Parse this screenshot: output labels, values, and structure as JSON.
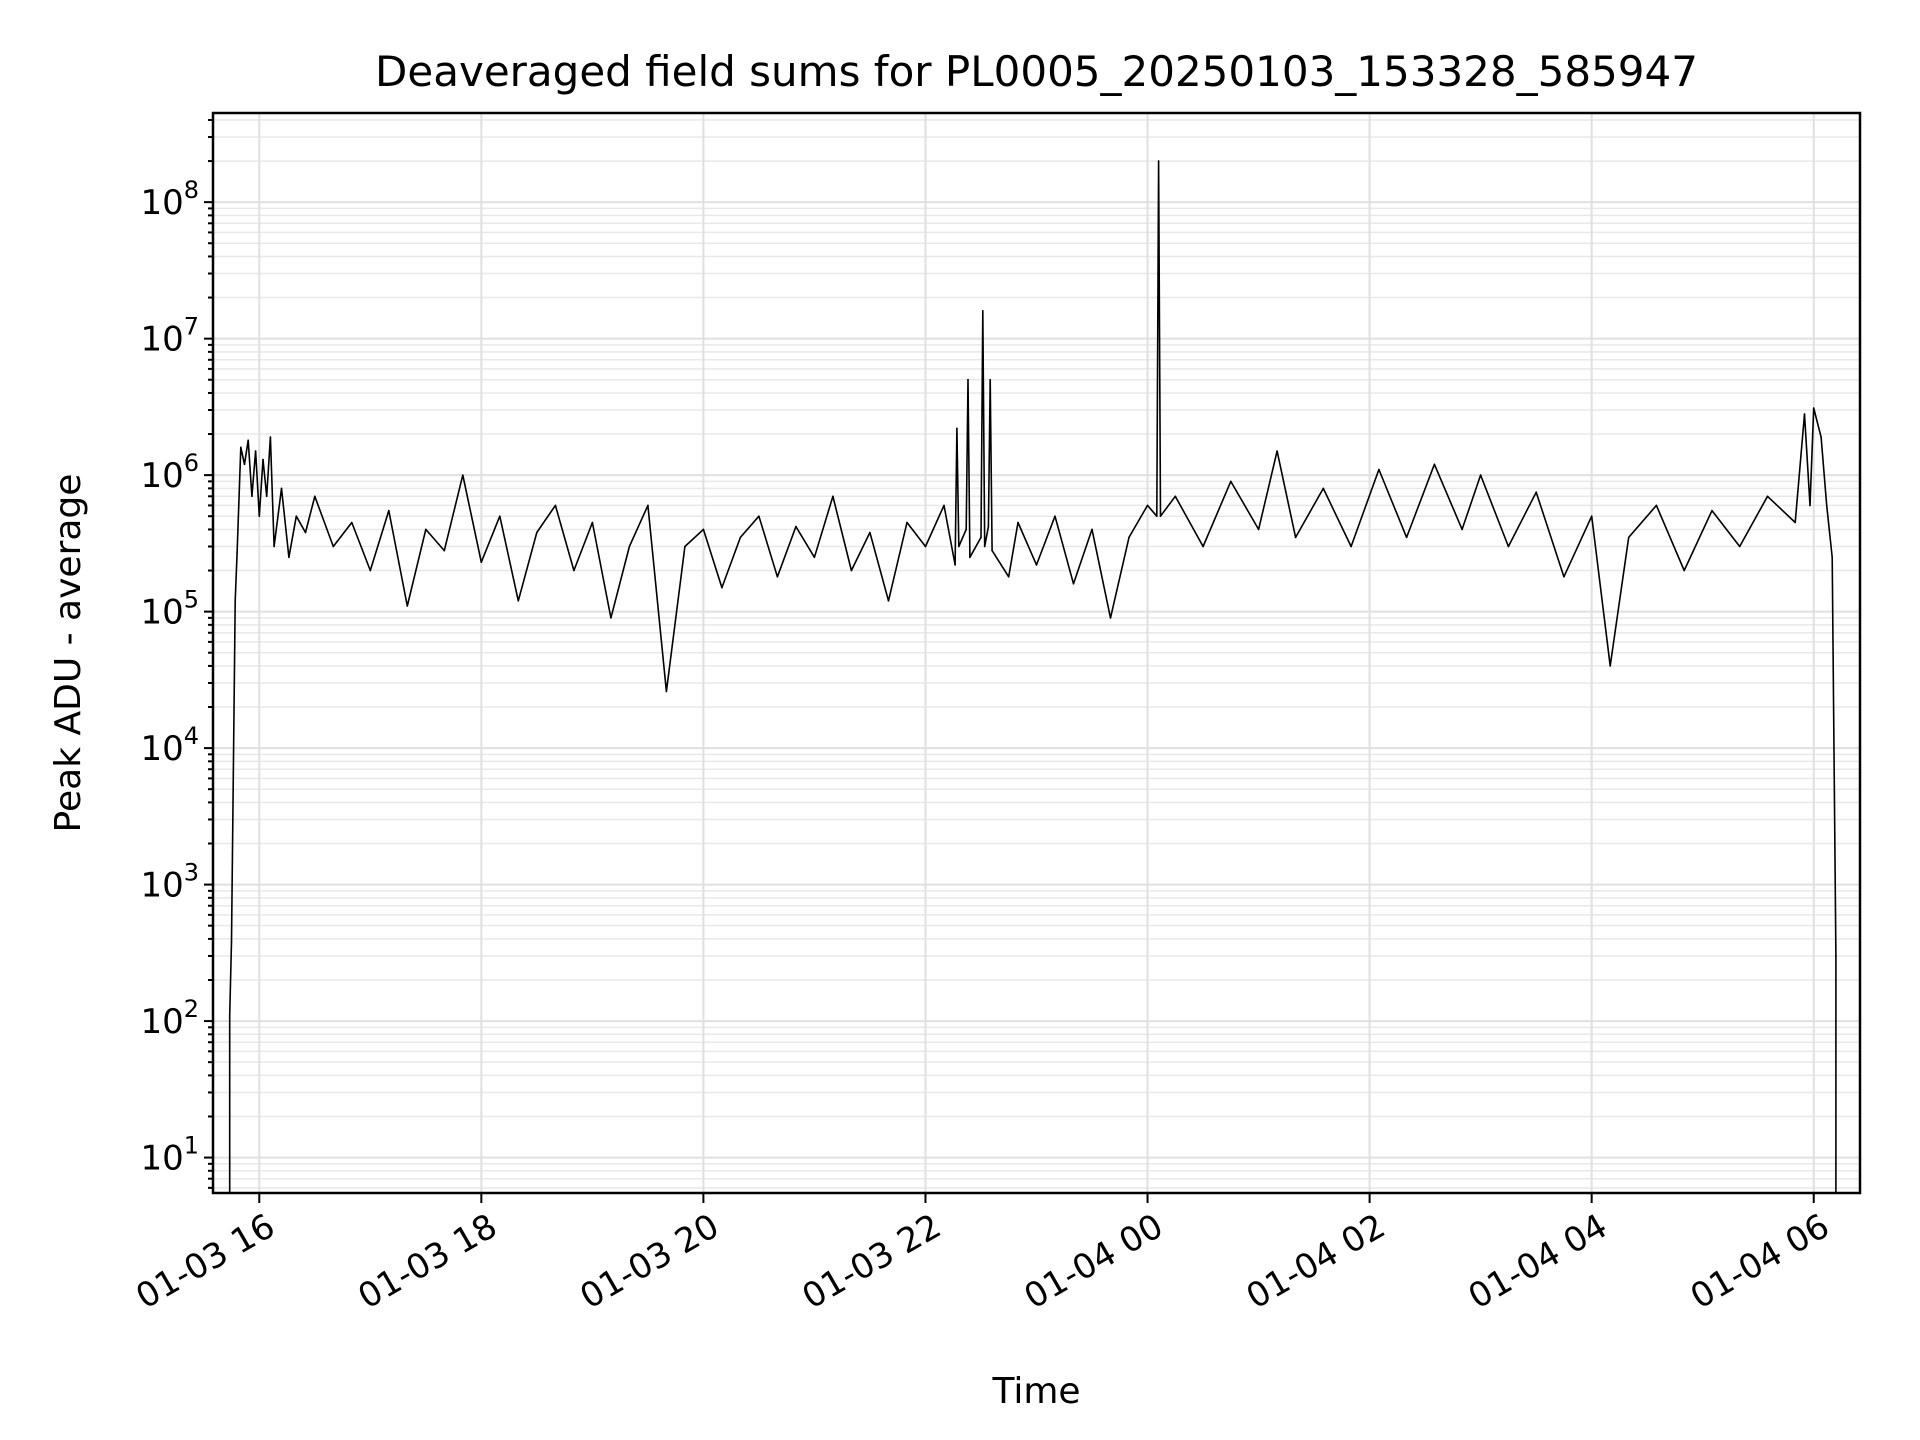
{
  "chart_data": {
    "type": "line",
    "title": "Deaveraged field sums for PL0005_20250103_153328_585947",
    "xlabel": "Time",
    "ylabel": "Peak ADU - average",
    "yscale": "log",
    "ylim": [
      5.5,
      450000000
    ],
    "xlim": [
      "2025-01-03 15:35",
      "2025-01-04 06:25"
    ],
    "grid": true,
    "x_ticks": [
      {
        "value": "2025-01-03 16:00",
        "label": "01-03 16"
      },
      {
        "value": "2025-01-03 18:00",
        "label": "01-03 18"
      },
      {
        "value": "2025-01-03 20:00",
        "label": "01-03 20"
      },
      {
        "value": "2025-01-03 22:00",
        "label": "01-03 22"
      },
      {
        "value": "2025-01-04 00:00",
        "label": "01-04 00"
      },
      {
        "value": "2025-01-04 02:00",
        "label": "01-04 02"
      },
      {
        "value": "2025-01-04 04:00",
        "label": "01-04 04"
      },
      {
        "value": "2025-01-04 06:00",
        "label": "01-04 06"
      }
    ],
    "y_ticks": [
      {
        "value": 10,
        "base": "10",
        "exp": "1"
      },
      {
        "value": 100,
        "base": "10",
        "exp": "2"
      },
      {
        "value": 1000,
        "base": "10",
        "exp": "3"
      },
      {
        "value": 10000,
        "base": "10",
        "exp": "4"
      },
      {
        "value": 100000,
        "base": "10",
        "exp": "5"
      },
      {
        "value": 1000000,
        "base": "10",
        "exp": "6"
      },
      {
        "value": 10000000,
        "base": "10",
        "exp": "7"
      },
      {
        "value": 100000000,
        "base": "10",
        "exp": "8"
      }
    ],
    "line_color": "#000000",
    "series": [
      {
        "points": [
          [
            "2025-01-03 15:44",
            110
          ],
          [
            "2025-01-03 15:45",
            380
          ],
          [
            "2025-01-03 15:47",
            120000
          ],
          [
            "2025-01-03 15:48",
            270000
          ],
          [
            "2025-01-03 15:50",
            1600000
          ],
          [
            "2025-01-03 15:52",
            1200000
          ],
          [
            "2025-01-03 15:54",
            1800000
          ],
          [
            "2025-01-03 15:56",
            700000
          ],
          [
            "2025-01-03 15:58",
            1500000
          ],
          [
            "2025-01-03 16:00",
            500000
          ],
          [
            "2025-01-03 16:02",
            1300000
          ],
          [
            "2025-01-03 16:04",
            700000
          ],
          [
            "2025-01-03 16:06",
            1900000
          ],
          [
            "2025-01-03 16:08",
            300000
          ],
          [
            "2025-01-03 16:12",
            800000
          ],
          [
            "2025-01-03 16:16",
            250000
          ],
          [
            "2025-01-03 16:20",
            500000
          ],
          [
            "2025-01-03 16:25",
            380000
          ],
          [
            "2025-01-03 16:30",
            700000
          ],
          [
            "2025-01-03 16:40",
            300000
          ],
          [
            "2025-01-03 16:50",
            450000
          ],
          [
            "2025-01-03 17:00",
            200000
          ],
          [
            "2025-01-03 17:10",
            550000
          ],
          [
            "2025-01-03 17:20",
            110000
          ],
          [
            "2025-01-03 17:30",
            400000
          ],
          [
            "2025-01-03 17:40",
            280000
          ],
          [
            "2025-01-03 17:50",
            1000000
          ],
          [
            "2025-01-03 18:00",
            230000
          ],
          [
            "2025-01-03 18:10",
            500000
          ],
          [
            "2025-01-03 18:20",
            120000
          ],
          [
            "2025-01-03 18:30",
            380000
          ],
          [
            "2025-01-03 18:40",
            600000
          ],
          [
            "2025-01-03 18:50",
            200000
          ],
          [
            "2025-01-03 19:00",
            450000
          ],
          [
            "2025-01-03 19:10",
            90000
          ],
          [
            "2025-01-03 19:20",
            300000
          ],
          [
            "2025-01-03 19:30",
            600000
          ],
          [
            "2025-01-03 19:40",
            26000
          ],
          [
            "2025-01-03 19:50",
            300000
          ],
          [
            "2025-01-03 20:00",
            400000
          ],
          [
            "2025-01-03 20:10",
            150000
          ],
          [
            "2025-01-03 20:20",
            350000
          ],
          [
            "2025-01-03 20:30",
            500000
          ],
          [
            "2025-01-03 20:40",
            180000
          ],
          [
            "2025-01-03 20:50",
            420000
          ],
          [
            "2025-01-03 21:00",
            250000
          ],
          [
            "2025-01-03 21:10",
            700000
          ],
          [
            "2025-01-03 21:20",
            200000
          ],
          [
            "2025-01-03 21:30",
            380000
          ],
          [
            "2025-01-03 21:40",
            120000
          ],
          [
            "2025-01-03 21:50",
            450000
          ],
          [
            "2025-01-03 22:00",
            300000
          ],
          [
            "2025-01-03 22:10",
            600000
          ],
          [
            "2025-01-03 22:16",
            220000
          ],
          [
            "2025-01-03 22:17",
            2200000
          ],
          [
            "2025-01-03 22:18",
            300000
          ],
          [
            "2025-01-03 22:22",
            400000
          ],
          [
            "2025-01-03 22:23",
            5000000
          ],
          [
            "2025-01-03 22:24",
            250000
          ],
          [
            "2025-01-03 22:30",
            350000
          ],
          [
            "2025-01-03 22:31",
            16000000
          ],
          [
            "2025-01-03 22:32",
            300000
          ],
          [
            "2025-01-03 22:34",
            420000
          ],
          [
            "2025-01-03 22:35",
            5000000
          ],
          [
            "2025-01-03 22:36",
            280000
          ],
          [
            "2025-01-03 22:45",
            180000
          ],
          [
            "2025-01-03 22:50",
            450000
          ],
          [
            "2025-01-03 23:00",
            220000
          ],
          [
            "2025-01-03 23:10",
            500000
          ],
          [
            "2025-01-03 23:20",
            160000
          ],
          [
            "2025-01-03 23:30",
            400000
          ],
          [
            "2025-01-03 23:40",
            90000
          ],
          [
            "2025-01-03 23:50",
            350000
          ],
          [
            "2025-01-04 00:00",
            600000
          ],
          [
            "2025-01-04 00:05",
            500000
          ],
          [
            "2025-01-04 00:06",
            200000000
          ],
          [
            "2025-01-04 00:07",
            500000
          ],
          [
            "2025-01-04 00:15",
            700000
          ],
          [
            "2025-01-04 00:30",
            300000
          ],
          [
            "2025-01-04 00:45",
            900000
          ],
          [
            "2025-01-04 01:00",
            400000
          ],
          [
            "2025-01-04 01:10",
            1500000
          ],
          [
            "2025-01-04 01:20",
            350000
          ],
          [
            "2025-01-04 01:35",
            800000
          ],
          [
            "2025-01-04 01:50",
            300000
          ],
          [
            "2025-01-04 02:05",
            1100000
          ],
          [
            "2025-01-04 02:20",
            350000
          ],
          [
            "2025-01-04 02:35",
            1200000
          ],
          [
            "2025-01-04 02:50",
            400000
          ],
          [
            "2025-01-04 03:00",
            1000000
          ],
          [
            "2025-01-04 03:15",
            300000
          ],
          [
            "2025-01-04 03:30",
            750000
          ],
          [
            "2025-01-04 03:45",
            180000
          ],
          [
            "2025-01-04 04:00",
            500000
          ],
          [
            "2025-01-04 04:10",
            40000
          ],
          [
            "2025-01-04 04:20",
            350000
          ],
          [
            "2025-01-04 04:35",
            600000
          ],
          [
            "2025-01-04 04:50",
            200000
          ],
          [
            "2025-01-04 05:05",
            550000
          ],
          [
            "2025-01-04 05:20",
            300000
          ],
          [
            "2025-01-04 05:35",
            700000
          ],
          [
            "2025-01-04 05:50",
            450000
          ],
          [
            "2025-01-04 05:55",
            2800000
          ],
          [
            "2025-01-04 05:58",
            600000
          ],
          [
            "2025-01-04 06:00",
            3100000
          ],
          [
            "2025-01-04 06:04",
            1900000
          ],
          [
            "2025-01-04 06:07",
            600000
          ],
          [
            "2025-01-04 06:10",
            250000
          ],
          [
            "2025-01-04 06:12",
            300
          ]
        ]
      }
    ]
  }
}
